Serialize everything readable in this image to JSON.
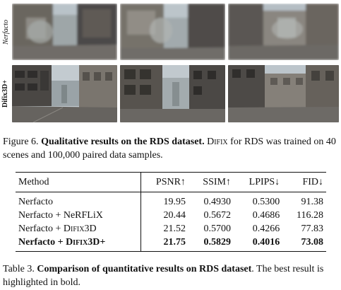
{
  "figure": {
    "row_labels": [
      "Nerfacto",
      "Difix3D+"
    ],
    "caption": {
      "label": "Figure 6.",
      "bold_text": "Qualitative results on the RDS dataset.",
      "sc_word": "Difix",
      "rest": " for RDS was trained on 40 scenes and 100,000 paired data samples."
    }
  },
  "table": {
    "columns": [
      "Method",
      "PSNR↑",
      "SSIM↑",
      "LPIPS↓",
      "FID↓"
    ],
    "rows": [
      {
        "method_prefix": "Nerfacto",
        "method_sc": "",
        "method_suffix": "",
        "psnr": "19.95",
        "ssim": "0.4930",
        "lpips": "0.5300",
        "fid": "91.38",
        "bold": false
      },
      {
        "method_prefix": "Nerfacto + NeRFLiX",
        "method_sc": "",
        "method_suffix": "",
        "psnr": "20.44",
        "ssim": "0.5672",
        "lpips": "0.4686",
        "fid": "116.28",
        "bold": false
      },
      {
        "method_prefix": "Nerfacto + ",
        "method_sc": "Difix",
        "method_suffix": "3D",
        "psnr": "21.52",
        "ssim": "0.5700",
        "lpips": "0.4266",
        "fid": "77.83",
        "bold": false
      },
      {
        "method_prefix": "Nerfacto + ",
        "method_sc": "Difix",
        "method_suffix": "3D+",
        "psnr": "21.75",
        "ssim": "0.5829",
        "lpips": "0.4016",
        "fid": "73.08",
        "bold": true
      }
    ],
    "caption": {
      "label": "Table 3.",
      "bold_text": "Comparison of quantitative results on RDS dataset",
      "rest": ". The best result is highlighted in bold."
    }
  },
  "colors": {
    "sky": "#b9c3c9",
    "building_dark": "#4c4a48",
    "building_mid": "#7d7a74",
    "road": "#6f6c68"
  }
}
